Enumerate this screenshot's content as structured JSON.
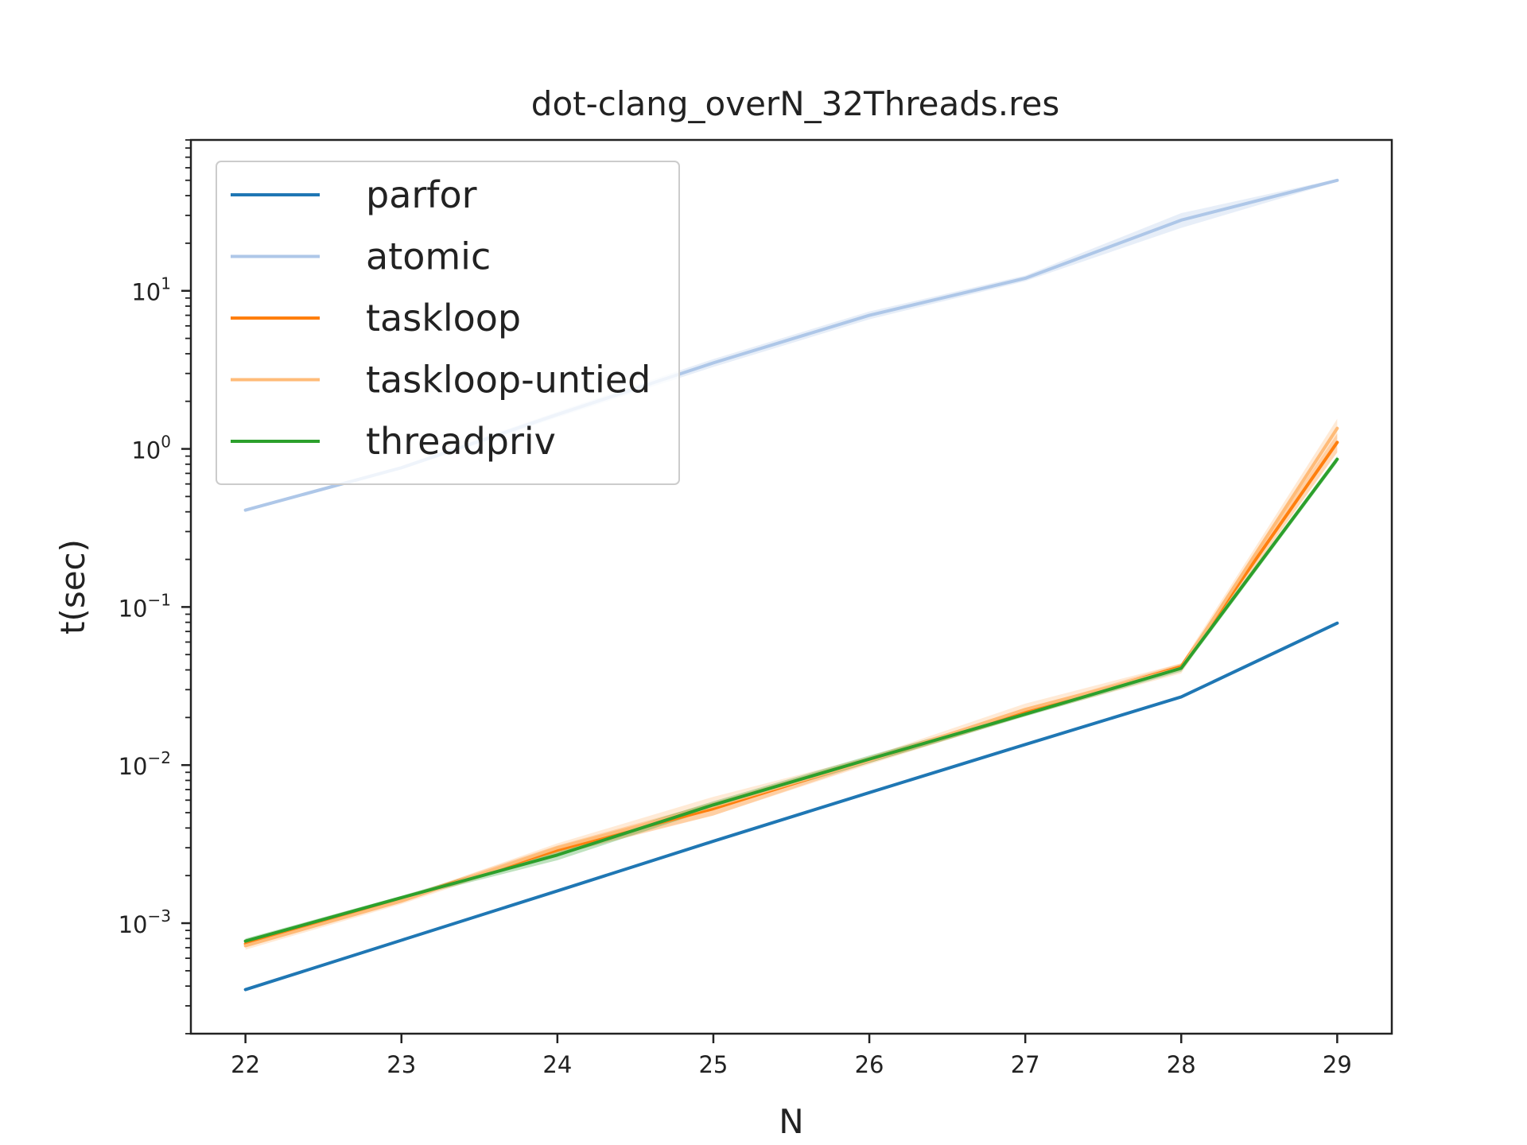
{
  "chart_data": {
    "type": "line",
    "title": "dot-clang_overN_32Threads.res",
    "xlabel": "N",
    "ylabel": "t(sec)",
    "yscale": "log",
    "xlim": [
      21.65,
      29.35
    ],
    "ylim": [
      0.0002,
      90
    ],
    "x": [
      22,
      23,
      24,
      25,
      26,
      27,
      28,
      29
    ],
    "x_ticks": [
      "22",
      "23",
      "24",
      "25",
      "26",
      "27",
      "28",
      "29"
    ],
    "y_ticks": [
      {
        "value": 0.001,
        "base": "10",
        "exp": "−3"
      },
      {
        "value": 0.01,
        "base": "10",
        "exp": "−2"
      },
      {
        "value": 0.1,
        "base": "10",
        "exp": "−1"
      },
      {
        "value": 1,
        "base": "10",
        "exp": "0"
      },
      {
        "value": 10,
        "base": "10",
        "exp": "1"
      }
    ],
    "grid": false,
    "legend_position": "top-left",
    "series": [
      {
        "name": "parfor",
        "color": "#1f77b4",
        "values": [
          0.00038,
          0.00078,
          0.0016,
          0.0033,
          0.0067,
          0.0135,
          0.027,
          0.079
        ],
        "band": null
      },
      {
        "name": "atomic",
        "color": "#aec7e8",
        "values": [
          0.41,
          0.76,
          1.65,
          3.5,
          7.0,
          12.0,
          28.0,
          50.0
        ],
        "band": {
          "lower": [
            0.4,
            0.74,
            1.58,
            3.3,
            6.6,
            11.5,
            25.0,
            49.0
          ],
          "upper": [
            0.42,
            0.78,
            1.72,
            3.7,
            7.4,
            12.5,
            31.0,
            51.0
          ]
        }
      },
      {
        "name": "taskloop",
        "color": "#ff7f0e",
        "values": [
          0.00074,
          0.00142,
          0.0029,
          0.0053,
          0.0108,
          0.0215,
          0.042,
          1.1
        ],
        "band": {
          "lower": [
            0.00071,
            0.00138,
            0.0027,
            0.0048,
            0.0103,
            0.0205,
            0.04,
            0.95
          ],
          "upper": [
            0.00077,
            0.00146,
            0.0031,
            0.0058,
            0.0113,
            0.0225,
            0.044,
            1.25
          ]
        }
      },
      {
        "name": "taskloop-untied",
        "color": "#ffbb78",
        "values": [
          0.00072,
          0.00138,
          0.003,
          0.0055,
          0.0107,
          0.0225,
          0.041,
          1.35
        ],
        "band": {
          "lower": [
            0.00068,
            0.00132,
            0.0028,
            0.0048,
            0.0101,
            0.0205,
            0.038,
            1.15
          ],
          "upper": [
            0.00077,
            0.00144,
            0.0032,
            0.0063,
            0.0113,
            0.0245,
            0.044,
            1.55
          ]
        }
      },
      {
        "name": "threadpriv",
        "color": "#2ca02c",
        "values": [
          0.00077,
          0.00145,
          0.0027,
          0.0056,
          0.0109,
          0.021,
          0.041,
          0.86
        ],
        "band": {
          "lower": [
            0.00075,
            0.00141,
            0.0025,
            0.0053,
            0.0103,
            0.0203,
            0.039,
            0.82
          ],
          "upper": [
            0.0008,
            0.00149,
            0.0029,
            0.0059,
            0.0115,
            0.0217,
            0.043,
            0.9
          ]
        }
      }
    ]
  }
}
